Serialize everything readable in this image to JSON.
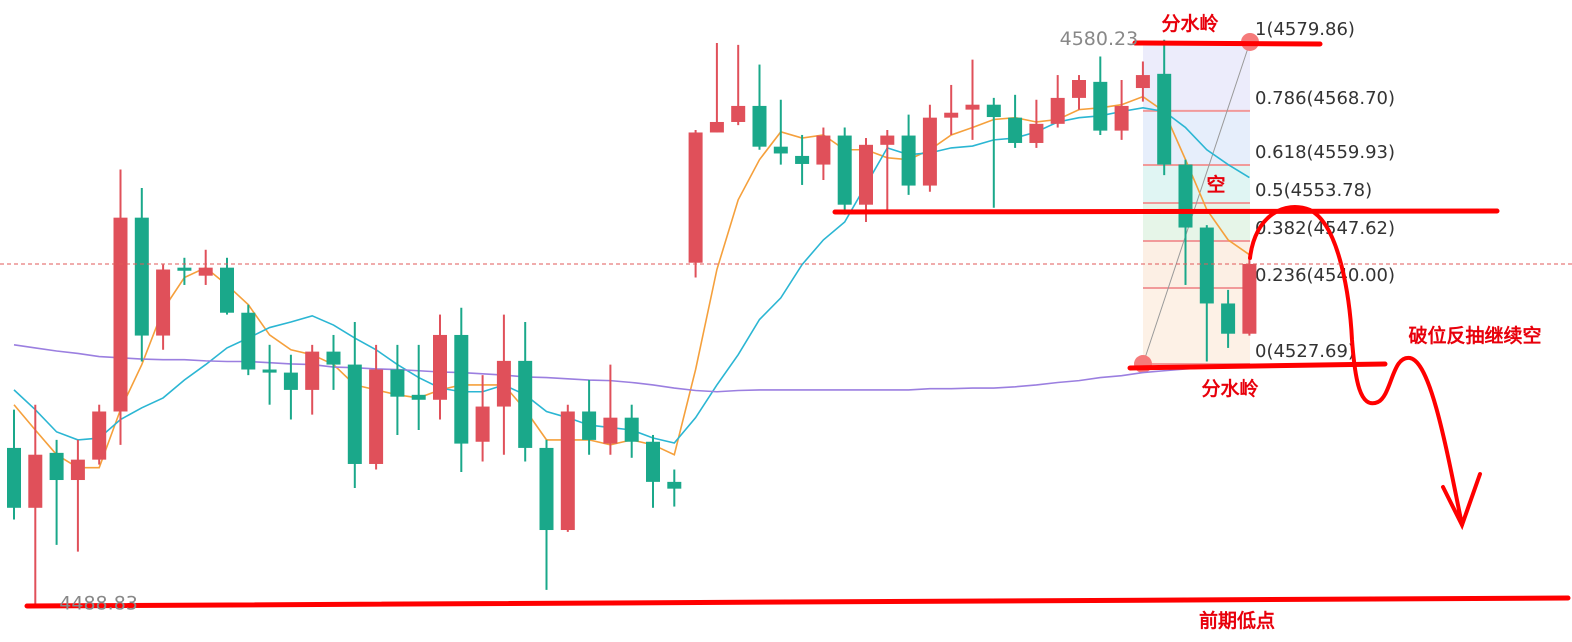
{
  "chart_data": {
    "type": "candlestick",
    "ylim": [
      4482.66,
      4586.66
    ],
    "up_color": "#e0505a",
    "down_color": "#1aa88a",
    "open": [
      4514.1,
      4504.4,
      4513.3,
      4508.9,
      4512.2,
      4520.0,
      4551.4,
      4532.3,
      4543.3,
      4542.0,
      4543.3,
      4536.0,
      4526.8,
      4526.3,
      4523.5,
      4529.7,
      4527.6,
      4511.5,
      4526.8,
      4522.7,
      4521.9,
      4532.4,
      4515.1,
      4520.8,
      4528.2,
      4514.1,
      4500.8,
      4520.0,
      4514.8,
      4519.0,
      4515.1,
      4508.6,
      4544.1,
      4565.2,
      4566.9,
      4569.5,
      4562.9,
      4561.4,
      4560.0,
      4564.7,
      4553.5,
      4563.2,
      4564.7,
      4556.6,
      4567.6,
      4568.9,
      4569.7,
      4567.6,
      4563.5,
      4566.6,
      4570.8,
      4573.4,
      4565.5,
      4572.4,
      4574.7,
      4560.0,
      4549.8,
      4537.5,
      4532.6
    ],
    "high": [
      4520.3,
      4521.1,
      4515.4,
      4515.4,
      4521.1,
      4559.2,
      4556.2,
      4543.8,
      4544.9,
      4546.2,
      4544.9,
      4537.3,
      4530.8,
      4529.2,
      4530.8,
      4532.4,
      4534.5,
      4530.8,
      4530.8,
      4530.8,
      4535.7,
      4536.8,
      4525.9,
      4535.7,
      4534.5,
      4515.4,
      4521.1,
      4525.1,
      4527.6,
      4521.1,
      4516.2,
      4510.6,
      4565.6,
      4579.7,
      4579.4,
      4576.2,
      4570.5,
      4564.8,
      4566.0,
      4566.0,
      4564.3,
      4565.6,
      4568.1,
      4569.7,
      4572.9,
      4577.0,
      4570.8,
      4571.3,
      4570.5,
      4574.5,
      4574.5,
      4577.5,
      4573.7,
      4576.7,
      4580.23,
      4560.8,
      4550.2,
      4539.7,
      4544.9
    ],
    "low": [
      4502.5,
      4488.83,
      4498.4,
      4497.3,
      4511.4,
      4514.6,
      4528.1,
      4530.0,
      4540.5,
      4540.5,
      4535.7,
      4525.9,
      4521.1,
      4518.7,
      4519.5,
      4523.5,
      4507.6,
      4510.6,
      4516.2,
      4517.0,
      4518.7,
      4510.2,
      4511.9,
      4513.0,
      4511.9,
      4491.1,
      4500.5,
      4513.0,
      4513.0,
      4512.5,
      4504.4,
      4504.6,
      4541.7,
      4565.2,
      4566.4,
      4562.4,
      4560.0,
      4556.7,
      4557.5,
      4551.9,
      4550.7,
      4552.4,
      4555.1,
      4555.6,
      4564.8,
      4564.0,
      4553.0,
      4562.7,
      4562.7,
      4566.0,
      4568.9,
      4564.8,
      4564.0,
      4570.2,
      4558.3,
      4540.5,
      4528.1,
      4530.3,
      4532.3
    ],
    "close": [
      4504.4,
      4513.0,
      4508.9,
      4512.2,
      4520.0,
      4551.4,
      4532.3,
      4543.0,
      4542.8,
      4543.3,
      4536.0,
      4526.8,
      4526.3,
      4523.5,
      4529.7,
      4527.6,
      4511.5,
      4526.8,
      4522.4,
      4521.9,
      4532.4,
      4514.8,
      4520.8,
      4528.2,
      4514.1,
      4500.8,
      4520.0,
      4515.4,
      4519.0,
      4515.1,
      4508.6,
      4507.5,
      4565.2,
      4566.9,
      4569.5,
      4562.9,
      4561.8,
      4560.1,
      4564.7,
      4553.5,
      4563.2,
      4564.7,
      4556.6,
      4567.6,
      4568.4,
      4569.7,
      4567.7,
      4563.5,
      4566.6,
      4570.8,
      4573.7,
      4565.5,
      4569.5,
      4574.5,
      4560.0,
      4549.8,
      4537.5,
      4532.6,
      4543.9
    ],
    "series": [
      {
        "color": "#f5a03c",
        "values": [
          4521.1,
          4517.0,
          4513.0,
          4510.9,
          4510.9,
          4520.3,
          4527.6,
          4536.5,
          4541.7,
          4543.3,
          4540.5,
          4537.3,
          4532.4,
          4530.0,
          4529.2,
          4527.6,
          4524.3,
          4523.5,
          4522.7,
          4522.2,
          4523.5,
          4524.3,
          4524.3,
          4524.3,
          4520.3,
          4515.4,
          4515.4,
          4515.4,
          4514.6,
          4515.4,
          4514.6,
          4513.0,
          4526.8,
          4543.0,
          4554.3,
          4560.8,
          4565.3,
          4564.3,
          4564.8,
          4562.4,
          4562.4,
          4561.1,
          4560.8,
          4562.4,
          4564.8,
          4566.0,
          4567.3,
          4567.6,
          4566.9,
          4567.3,
          4568.9,
          4569.2,
          4569.7,
          4571.0,
          4568.6,
          4560.8,
          4552.7,
          4547.8,
          4545.4
        ]
      },
      {
        "color": "#2bb6d3",
        "values": [
          4523.5,
          4520.3,
          4516.7,
          4515.4,
          4515.7,
          4518.7,
          4520.6,
          4522.2,
          4525.1,
          4527.6,
          4530.3,
          4531.9,
          4533.6,
          4534.5,
          4535.5,
          4534.0,
          4531.9,
          4530.0,
          4527.6,
          4525.5,
          4523.8,
          4523.2,
          4523.2,
          4524.3,
          4522.7,
          4520.0,
          4519.0,
          4517.8,
          4517.4,
          4517.0,
          4515.7,
          4514.9,
          4519.0,
          4524.3,
          4529.2,
          4534.9,
          4538.4,
          4543.8,
          4547.8,
          4550.7,
          4556.7,
          4562.7,
          4561.6,
          4561.9,
          4562.7,
          4563.0,
          4564.0,
          4564.3,
          4565.3,
          4566.9,
          4567.6,
          4567.9,
          4568.6,
          4569.2,
          4568.6,
          4566.0,
          4562.4,
          4560.0,
          4557.9
        ]
      },
      {
        "color": "#9b7fe0",
        "values": [
          4530.8,
          4530.3,
          4529.8,
          4529.4,
          4528.9,
          4528.7,
          4528.5,
          4528.4,
          4528.4,
          4528.2,
          4528.1,
          4528.1,
          4527.9,
          4527.7,
          4527.6,
          4527.2,
          4527.1,
          4526.9,
          4526.8,
          4526.6,
          4526.4,
          4526.3,
          4526.1,
          4525.9,
          4525.6,
          4525.5,
          4525.3,
          4525.1,
          4525.0,
          4524.7,
          4524.3,
          4523.8,
          4523.4,
          4523.2,
          4523.4,
          4523.5,
          4523.5,
          4523.5,
          4523.5,
          4523.5,
          4523.5,
          4523.5,
          4523.5,
          4523.7,
          4523.7,
          4523.8,
          4523.8,
          4524.0,
          4524.3,
          4524.7,
          4525.0,
          4525.5,
          4525.8,
          4526.3,
          4526.6,
          4526.9,
          4527.1,
          4527.2,
          4527.4
        ]
      }
    ],
    "fib": {
      "levels": [
        {
          "value": 4579.86,
          "label": "1(4579.86)"
        },
        {
          "value": 4568.7,
          "label": "0.786(4568.70)"
        },
        {
          "value": 4559.93,
          "label": "0.618(4559.93)"
        },
        {
          "value": 4553.78,
          "label": "0.5(4553.78)"
        },
        {
          "value": 4547.62,
          "label": "0.382(4547.62)"
        },
        {
          "value": 4540.0,
          "label": "0.236(4540.00)"
        },
        {
          "value": 4527.69,
          "label": "0(4527.69)"
        }
      ],
      "zone_colors": [
        "#ececfb",
        "#e6eefb",
        "#e0f5f3",
        "#e6f5e8",
        "#fcefe4",
        "#fdf1e6"
      ],
      "line_color": "#f19a9a"
    },
    "annotations": [
      "分水岭",
      "空",
      "破位反抽继续空",
      "分水岭",
      "前期低点"
    ]
  }
}
